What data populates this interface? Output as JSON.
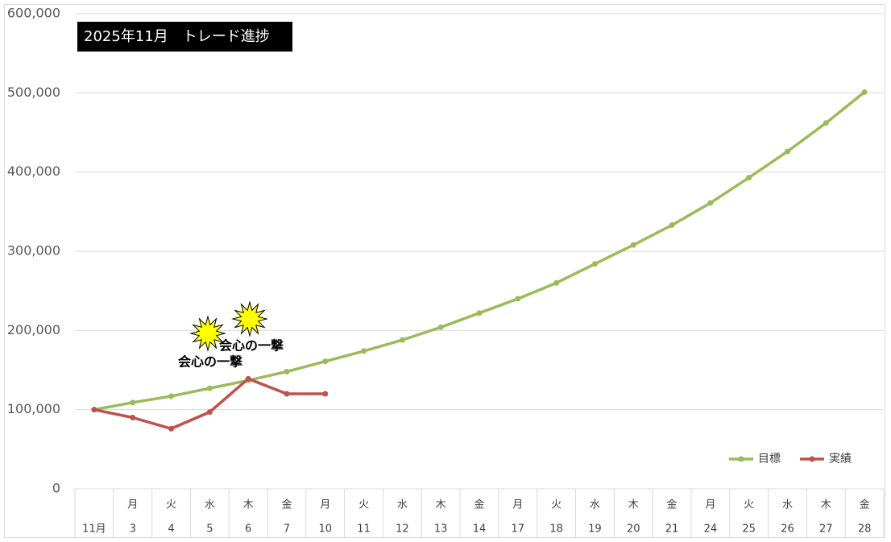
{
  "chart_data": {
    "type": "line",
    "title": "2025年11月　トレード進捗",
    "categories": [
      "11月",
      "3",
      "4",
      "5",
      "6",
      "7",
      "10",
      "11",
      "12",
      "13",
      "14",
      "17",
      "18",
      "19",
      "20",
      "21",
      "24",
      "25",
      "26",
      "27",
      "28"
    ],
    "weekdays": [
      null,
      "月",
      "火",
      "水",
      "木",
      "金",
      "月",
      "火",
      "水",
      "木",
      "金",
      "月",
      "火",
      "水",
      "木",
      "金",
      "月",
      "火",
      "水",
      "木",
      "金"
    ],
    "series": [
      {
        "name": "目標",
        "color": "#9bbb59",
        "values": [
          100000,
          109000,
          117000,
          127000,
          137000,
          148000,
          161000,
          174000,
          188000,
          204000,
          222000,
          240000,
          260000,
          284000,
          308000,
          333000,
          361000,
          393000,
          426000,
          462000,
          501000
        ]
      },
      {
        "name": "実績",
        "color": "#c0504d",
        "values": [
          100000,
          90000,
          76000,
          97000,
          139000,
          120000,
          120000,
          null,
          null,
          null,
          null,
          null,
          null,
          null,
          null,
          null,
          null,
          null,
          null,
          null,
          null
        ]
      }
    ],
    "annotations": [
      "会心の一撃",
      "会心の一撃"
    ],
    "ylim": [
      0,
      600000
    ],
    "yticks": [
      0,
      {
        "value": 100000,
        "label": "100,000"
      },
      {
        "value": 200000,
        "label": "200,000"
      },
      {
        "value": 300000,
        "label": "300,000"
      },
      {
        "value": 400000,
        "label": "400,000"
      },
      {
        "value": 500000,
        "label": "500,000"
      },
      {
        "value": 600000,
        "label": "600,000"
      }
    ],
    "grid": true,
    "legend": "bottom-right"
  }
}
